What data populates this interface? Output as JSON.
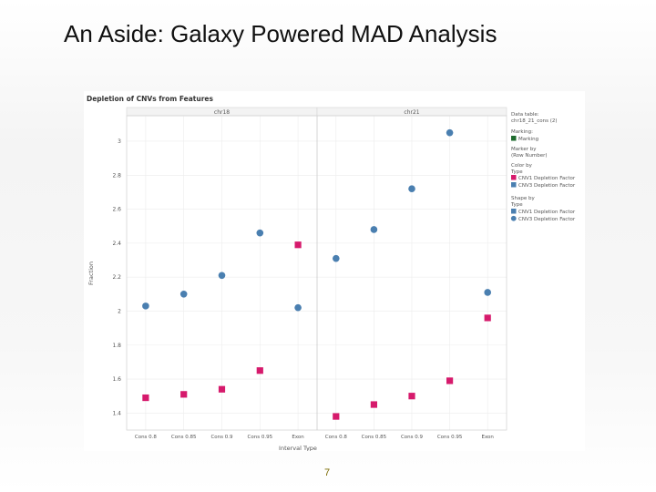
{
  "slide": {
    "title": "An Aside: Galaxy Powered MAD Analysis",
    "page_number": "7"
  },
  "legend": {
    "data_table_label": "Data table:",
    "data_table_value": "chr18_21_cons (2)",
    "marking_label": "Marking:",
    "marking_value": "Marking",
    "marker_by_label": "Marker by",
    "marker_by_value": "(Row Number)",
    "color_by_label": "Color by",
    "color_by_value": "Type",
    "shape_by_label": "Shape by",
    "shape_by_value": "Type",
    "color_items": [
      "CNV1 Depletion Factor",
      "CNV3 Depletion Factor"
    ],
    "shape_items": [
      "CNV1 Depletion Factor",
      "CNV3 Depletion Factor"
    ]
  },
  "colors": {
    "cnv1": "#d61a6c",
    "cnv3": "#4a7fb0",
    "marking": "#1f6b2e"
  },
  "chart_data": {
    "type": "scatter",
    "title": "Depletion of CNVs from Features",
    "xlabel": "Interval Type",
    "ylabel": "Fraction",
    "ylim": [
      1.3,
      3.15
    ],
    "yticks": [
      1.4,
      1.6,
      1.8,
      2,
      2.2,
      2.4,
      2.6,
      2.8,
      3
    ],
    "ytick_labels": [
      "1.4",
      "1.6",
      "1.8",
      "2",
      "2.2",
      "2.4",
      "2.6",
      "2.8",
      "3"
    ],
    "categories": [
      "Cons 0.8",
      "Cons 0.85",
      "Cons 0.9",
      "Cons 0.95",
      "Exon"
    ],
    "grid": true,
    "panels": [
      {
        "name": "chr18",
        "series": [
          {
            "name": "CNV1 Depletion Factor",
            "shape": "square",
            "values": [
              1.49,
              1.51,
              1.54,
              1.65,
              2.39
            ]
          },
          {
            "name": "CNV3 Depletion Factor",
            "shape": "circle",
            "values": [
              2.03,
              2.1,
              2.21,
              2.46,
              2.02
            ]
          }
        ]
      },
      {
        "name": "chr21",
        "series": [
          {
            "name": "CNV1 Depletion Factor",
            "shape": "square",
            "values": [
              1.38,
              1.45,
              1.5,
              1.59,
              1.96
            ]
          },
          {
            "name": "CNV3 Depletion Factor",
            "shape": "circle",
            "values": [
              2.31,
              2.48,
              2.72,
              3.05,
              2.11
            ]
          }
        ]
      }
    ]
  }
}
